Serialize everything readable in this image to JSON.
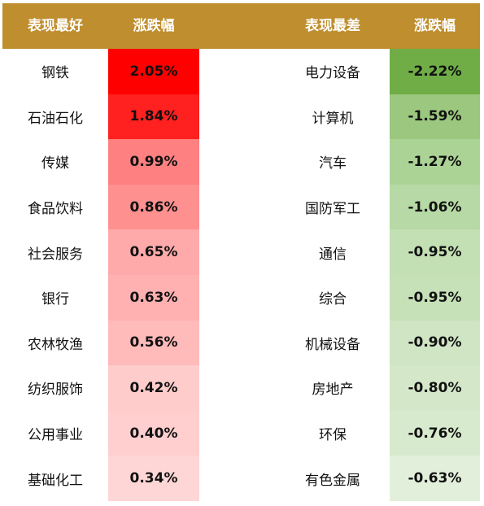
{
  "header": {
    "best_label": "表现最好",
    "best_change_label": "涨跌幅",
    "worst_label": "表现最差",
    "worst_change_label": "涨跌幅"
  },
  "colors": {
    "header_bg": "#BF8E2E",
    "best_shades": [
      "#FF0000",
      "#FF2020",
      "#FF8080",
      "#FF9090",
      "#FFAAAA",
      "#FFB0B0",
      "#FFBABA",
      "#FFCCCC",
      "#FFCFCF",
      "#FFD6D6"
    ],
    "worst_shades": [
      "#70AD47",
      "#9BC77F",
      "#ABD396",
      "#B6D9A5",
      "#C3E0B4",
      "#C6E1B8",
      "#CFE5C3",
      "#D4E8C9",
      "#D7EACD",
      "#E2F0DB"
    ]
  },
  "rows": [
    {
      "best_name": "钢铁",
      "best_change": "2.05%",
      "worst_name": "电力设备",
      "worst_change": "-2.22%"
    },
    {
      "best_name": "石油石化",
      "best_change": "1.84%",
      "worst_name": "计算机",
      "worst_change": "-1.59%"
    },
    {
      "best_name": "传媒",
      "best_change": "0.99%",
      "worst_name": "汽车",
      "worst_change": "-1.27%"
    },
    {
      "best_name": "食品饮料",
      "best_change": "0.86%",
      "worst_name": "国防军工",
      "worst_change": "-1.06%"
    },
    {
      "best_name": "社会服务",
      "best_change": "0.65%",
      "worst_name": "通信",
      "worst_change": "-0.95%"
    },
    {
      "best_name": "银行",
      "best_change": "0.63%",
      "worst_name": "综合",
      "worst_change": "-0.95%"
    },
    {
      "best_name": "农林牧渔",
      "best_change": "0.56%",
      "worst_name": "机械设备",
      "worst_change": "-0.90%"
    },
    {
      "best_name": "纺织服饰",
      "best_change": "0.42%",
      "worst_name": "房地产",
      "worst_change": "-0.80%"
    },
    {
      "best_name": "公用事业",
      "best_change": "0.40%",
      "worst_name": "环保",
      "worst_change": "-0.76%"
    },
    {
      "best_name": "基础化工",
      "best_change": "0.34%",
      "worst_name": "有色金属",
      "worst_change": "-0.63%"
    }
  ]
}
